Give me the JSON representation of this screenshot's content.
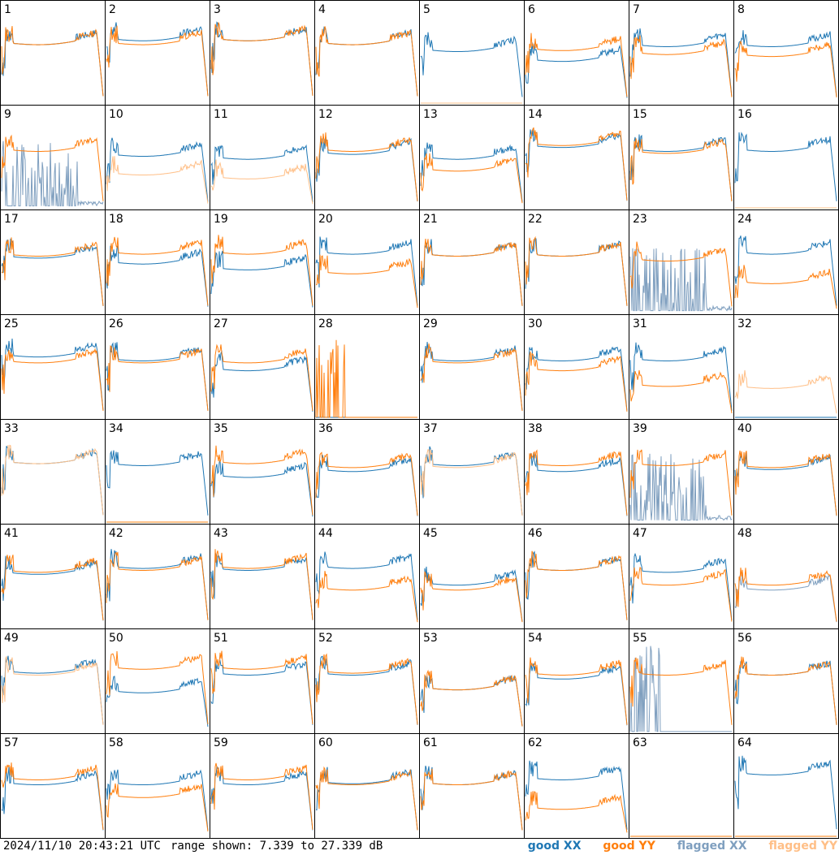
{
  "chart_data": {
    "type": "line",
    "panel_ids": [
      "1",
      "2",
      "3",
      "4",
      "5",
      "6",
      "7",
      "8",
      "9",
      "10",
      "11",
      "12",
      "13",
      "14",
      "15",
      "16",
      "17",
      "18",
      "19",
      "20",
      "21",
      "22",
      "23",
      "24",
      "25",
      "26",
      "27",
      "28",
      "29",
      "30",
      "31",
      "32",
      "33",
      "34",
      "35",
      "36",
      "37",
      "38",
      "39",
      "40",
      "41",
      "42",
      "43",
      "44",
      "45",
      "46",
      "47",
      "48",
      "49",
      "50",
      "51",
      "52",
      "53",
      "54",
      "55",
      "56",
      "57",
      "58",
      "59",
      "60",
      "61",
      "62",
      "63",
      "64"
    ],
    "ylim": [
      7.339,
      27.339
    ],
    "ylabel_units": "dB",
    "flagged_xx": [
      "9",
      "23",
      "39",
      "48",
      "55",
      "63"
    ],
    "flagged_yy": [
      "5",
      "10",
      "11",
      "16",
      "32",
      "33",
      "37",
      "49"
    ],
    "dead_xx": [
      "28",
      "32",
      "63"
    ],
    "dead_yy": [
      "63",
      "64"
    ],
    "burst_yy": [
      "28",
      "63"
    ],
    "burst_xx": [
      "55"
    ],
    "profiles": {
      "xx_level_relative": [
        0.62,
        0.66,
        0.66,
        0.62,
        0.55,
        0.45,
        0.6,
        0.6,
        0.55,
        0.55,
        0.52,
        0.57,
        0.52,
        0.64,
        0.6,
        0.6,
        0.58,
        0.52,
        0.46,
        0.62,
        0.6,
        0.6,
        0.4,
        0.62,
        0.64,
        0.6,
        0.5,
        0.0,
        0.6,
        0.6,
        0.6,
        0.0,
        0.62,
        0.6,
        0.48,
        0.54,
        0.6,
        0.54,
        0.2,
        0.56,
        0.56,
        0.62,
        0.6,
        0.62,
        0.45,
        0.6,
        0.58,
        0.4,
        0.62,
        0.42,
        0.6,
        0.6,
        0.45,
        0.56,
        0.2,
        0.6,
        0.55,
        0.55,
        0.55,
        0.56,
        0.55,
        0.6,
        0.0,
        0.65
      ],
      "yy_level_relative": [
        0.62,
        0.62,
        0.66,
        0.62,
        0.0,
        0.56,
        0.52,
        0.5,
        0.6,
        0.36,
        0.32,
        0.6,
        0.4,
        0.66,
        0.58,
        0.0,
        0.6,
        0.62,
        0.62,
        0.42,
        0.6,
        0.6,
        0.55,
        0.32,
        0.58,
        0.58,
        0.58,
        0.0,
        0.58,
        0.5,
        0.34,
        0.32,
        0.62,
        0.0,
        0.62,
        0.58,
        0.58,
        0.6,
        0.6,
        0.58,
        0.58,
        0.6,
        0.62,
        0.4,
        0.4,
        0.6,
        0.45,
        0.45,
        0.6,
        0.66,
        0.66,
        0.62,
        0.45,
        0.6,
        0.6,
        0.6,
        0.6,
        0.42,
        0.6,
        0.55,
        0.55,
        0.3,
        0.0,
        0.0
      ]
    }
  },
  "footer": {
    "timestamp": "2024/11/10 20:43:21 UTC",
    "range_text": "range shown: 7.339 to 27.339 dB"
  },
  "legend": {
    "good_xx": "good XX",
    "good_yy": "good YY",
    "flagged_xx": "flagged XX",
    "flagged_yy": "flagged YY"
  },
  "colors": {
    "good_xx": "#1f77b4",
    "good_yy": "#ff7f0e",
    "flagged_xx": "#7f9fbf",
    "flagged_yy": "#ffbf87",
    "border": "#000000"
  }
}
